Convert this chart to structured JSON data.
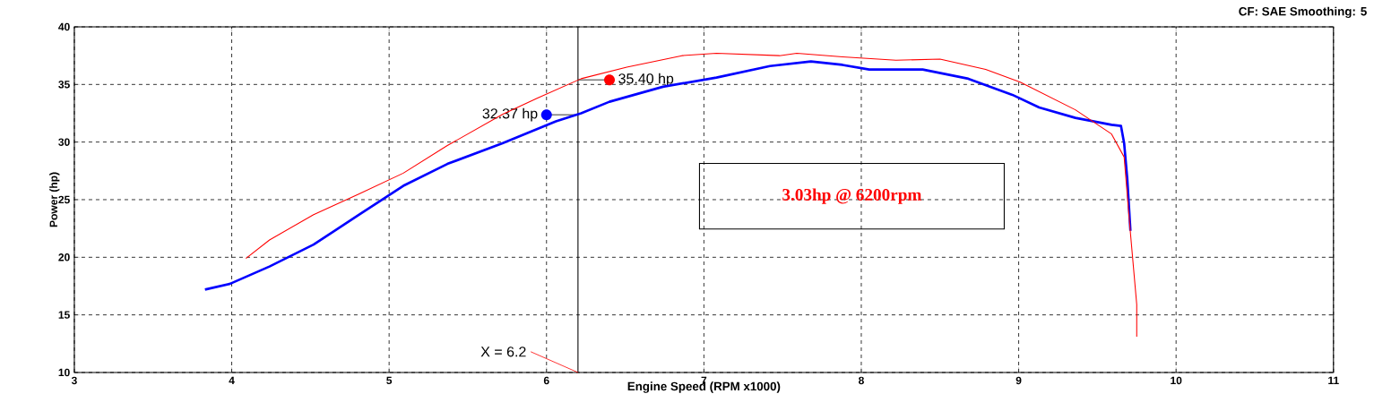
{
  "chart_data": {
    "type": "line",
    "xlabel": "Engine Speed (RPM x1000)",
    "ylabel": "Power (hp)",
    "xlim": [
      3,
      11
    ],
    "ylim": [
      10,
      40
    ],
    "xticks": [
      3,
      4,
      5,
      6,
      7,
      8,
      9,
      10,
      11
    ],
    "yticks": [
      10,
      15,
      20,
      25,
      30,
      35,
      40
    ],
    "grid": true,
    "series": [
      {
        "color": "#0000ff",
        "x": [
          3.83,
          3.99,
          4.24,
          4.52,
          4.81,
          5.09,
          5.37,
          5.72,
          6.06,
          6.22,
          6.4,
          6.74,
          7.08,
          7.42,
          7.68,
          7.88,
          8.05,
          8.39,
          8.68,
          8.96,
          9.13,
          9.36,
          9.59,
          9.65,
          9.67,
          9.69,
          9.71
        ],
        "values": [
          17.2,
          17.7,
          19.2,
          21.1,
          23.7,
          26.2,
          28.1,
          29.9,
          31.8,
          32.5,
          33.5,
          34.8,
          35.6,
          36.6,
          37.0,
          36.7,
          36.3,
          36.3,
          35.5,
          34.1,
          33.0,
          32.1,
          31.5,
          31.4,
          29.9,
          26.8,
          22.3
        ]
      },
      {
        "color": "#ff0000",
        "x": [
          4.09,
          4.24,
          4.52,
          4.81,
          5.09,
          5.37,
          5.72,
          5.94,
          6.22,
          6.51,
          6.86,
          7.08,
          7.48,
          7.59,
          7.88,
          8.22,
          8.5,
          8.79,
          9.01,
          9.36,
          9.59,
          9.67,
          9.71,
          9.75,
          9.75
        ],
        "values": [
          19.9,
          21.5,
          23.7,
          25.5,
          27.3,
          29.7,
          32.4,
          33.8,
          35.5,
          36.5,
          37.5,
          37.7,
          37.5,
          37.7,
          37.4,
          37.1,
          37.2,
          36.3,
          35.2,
          32.8,
          30.7,
          28.7,
          22.1,
          15.9,
          13.1
        ]
      }
    ],
    "ref_lines": [
      {
        "axis": "x",
        "value": 6.2,
        "label": "X = 6.2",
        "color": "#000000"
      }
    ],
    "annotations": [
      {
        "text": "32.37 hp",
        "x": 6.0,
        "y": 32.37
      },
      {
        "text": "35.40 hp",
        "x": 6.4,
        "y": 35.4
      },
      "3.03hp @ 6200rpm",
      "CF: SAE  Smoothing: 5"
    ]
  }
}
